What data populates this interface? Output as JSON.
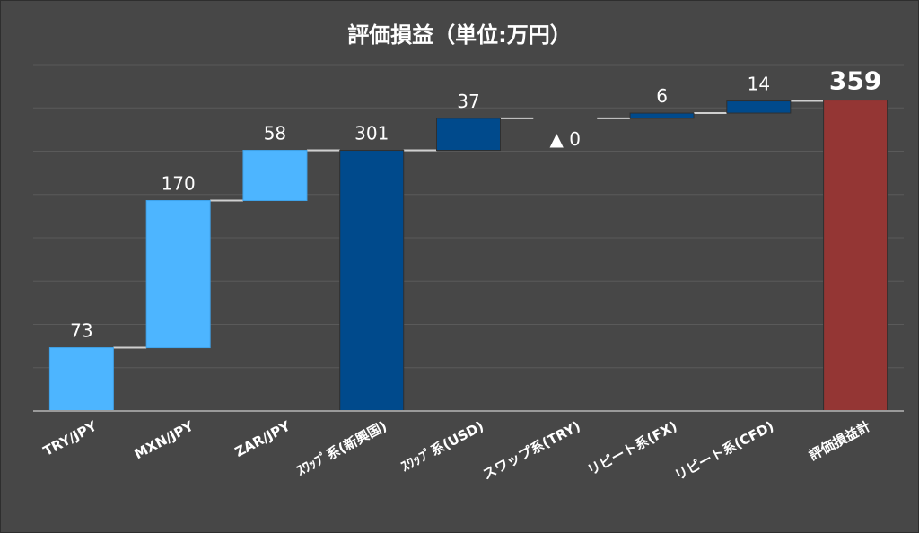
{
  "chart_data": {
    "type": "waterfall",
    "title": "評価損益（単位:万円）",
    "ylim": [
      0,
      400
    ],
    "grid": true,
    "legend": "none",
    "categories": [
      "TRY/JPY",
      "MXN/JPY",
      "ZAR/JPY",
      "ｽﾜｯﾌﾟ系(新興国)",
      "ｽﾜｯﾌﾟ系(USD)",
      "スワップ系(TRY)",
      "リピート系(FX)",
      "リピート系(CFD)",
      "評価損益計"
    ],
    "values": [
      73,
      170,
      58,
      301,
      37,
      0,
      6,
      14,
      359
    ],
    "point_kinds": [
      "delta",
      "delta",
      "delta",
      "subtotal",
      "delta",
      "delta",
      "delta",
      "delta",
      "total"
    ],
    "labels": [
      "73",
      "170",
      "58",
      "301",
      "37",
      "▲ 0",
      "6",
      "14",
      "359"
    ],
    "colors": {
      "currency_delta": "#4db5ff",
      "subtotal": "#004a8c",
      "delta": "#004a8c",
      "total": "#943634",
      "connector": "#cfcfcf",
      "grid": "#5a5a5a",
      "text": "#ffffff"
    }
  }
}
